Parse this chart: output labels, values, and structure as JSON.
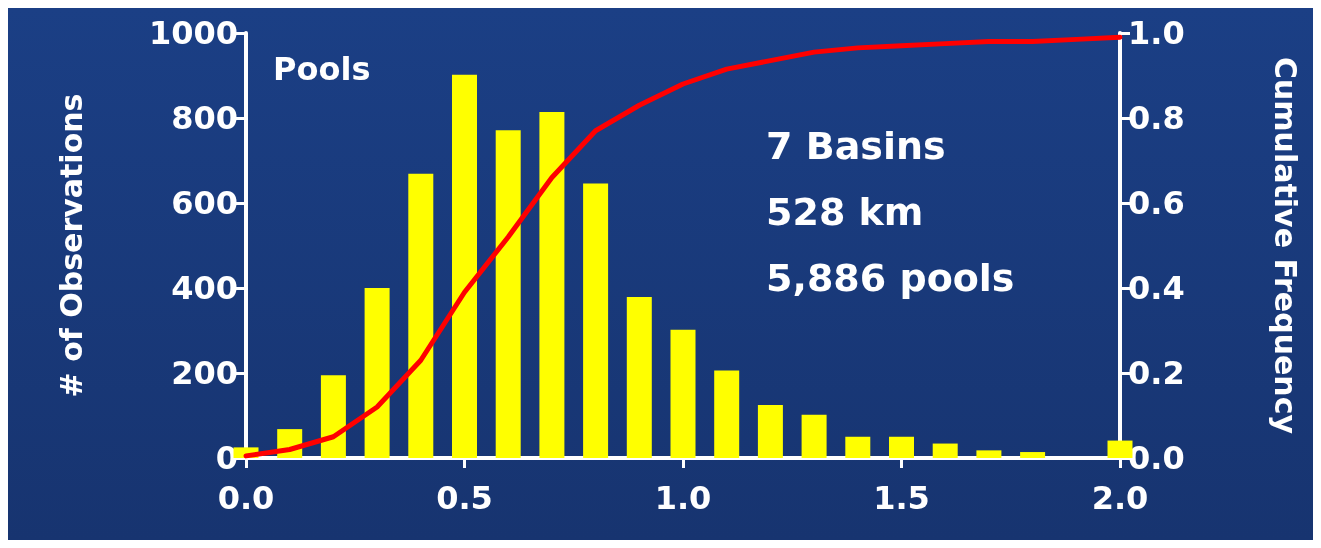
{
  "chart_data": {
    "type": "bar",
    "ylabel": "# of Observations",
    "y2label": "Cumulative Frequency",
    "annotations": [
      "Pools",
      "7 Basins\n528 km\n5,886 pools"
    ],
    "series": [
      {
        "color": "#ffff00",
        "x": [
          0.0,
          0.1,
          0.2,
          0.3,
          0.4,
          0.5,
          0.6,
          0.7,
          0.8,
          0.9,
          1.0,
          1.1,
          1.2,
          1.3,
          1.4,
          1.5,
          1.6,
          1.7,
          1.8,
          2.0
        ],
        "values": [
          25,
          68,
          195,
          400,
          669,
          902,
          771,
          814,
          646,
          379,
          302,
          206,
          125,
          102,
          50,
          50,
          34,
          18,
          14,
          41
        ]
      },
      {
        "type": "line",
        "axis": "y2",
        "color": "#ff0000",
        "x": [
          0.0,
          0.1,
          0.2,
          0.3,
          0.4,
          0.5,
          0.6,
          0.7,
          0.8,
          0.9,
          1.0,
          1.1,
          1.2,
          1.3,
          1.4,
          1.5,
          1.6,
          1.7,
          1.8,
          1.9,
          2.0
        ],
        "values": [
          0.005,
          0.02,
          0.05,
          0.12,
          0.23,
          0.39,
          0.52,
          0.66,
          0.77,
          0.83,
          0.88,
          0.915,
          0.935,
          0.955,
          0.965,
          0.97,
          0.975,
          0.98,
          0.98,
          0.985,
          0.99
        ]
      }
    ],
    "xlim": [
      0,
      2
    ],
    "xticks": [
      {
        "value": 0,
        "label": "0.0"
      },
      {
        "value": 0.5,
        "label": "0.5"
      },
      {
        "value": 1,
        "label": "1.0"
      },
      {
        "value": 1.5,
        "label": "1.5"
      },
      {
        "value": 2,
        "label": "2.0"
      }
    ],
    "ylim": [
      0,
      1000
    ],
    "yticks": [
      0,
      200,
      400,
      600,
      800,
      1000
    ],
    "y2lim": [
      0,
      1
    ],
    "y2ticks": [
      {
        "value": 0,
        "label": "0.0"
      },
      {
        "value": 0.2,
        "label": "0.2"
      },
      {
        "value": 0.4,
        "label": "0.4"
      },
      {
        "value": 0.6,
        "label": "0.6"
      },
      {
        "value": 0.8,
        "label": "0.8"
      },
      {
        "value": 1,
        "label": "1.0"
      }
    ],
    "grid": false,
    "marker": "none",
    "line_style": "solid"
  }
}
